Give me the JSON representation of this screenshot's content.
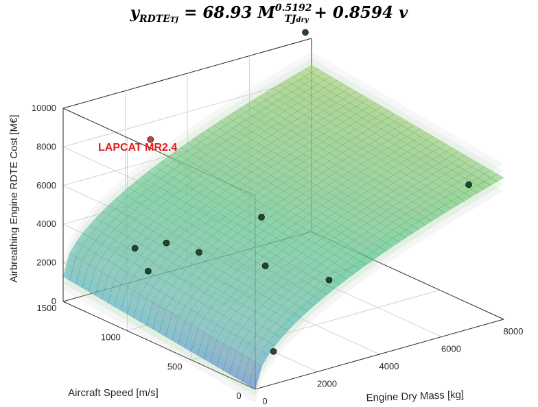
{
  "title": {
    "y": "y",
    "y_sub": "RDTE",
    "y_subsub": "TJ",
    "equals": " = ",
    "coef1": "68.93",
    "var": "M",
    "var_sub": "TJ",
    "var_subsub": "dry",
    "exponent": "0.5192",
    "plus": " + ",
    "coef2": "0.8594",
    "var2": "v"
  },
  "chart_data": {
    "type": "surface3d",
    "equation": "y = 68.93 * M^0.5192 + 0.8594 * v",
    "coef_mass": 68.93,
    "exponent_mass": 0.5192,
    "coef_speed": 0.8594,
    "xlabel": "Engine Dry Mass [kg]",
    "ylabel": "Aircraft Speed [m/s]",
    "zlabel": "Airbreathing Engine RDTE Cost [M€]",
    "xlim": [
      0,
      8000
    ],
    "ylim": [
      0,
      1500
    ],
    "zlim": [
      0,
      10000
    ],
    "xticks": [
      "0",
      "2000",
      "4000",
      "6000",
      "8000"
    ],
    "yticks": [
      "0",
      "500",
      "1000",
      "1500"
    ],
    "zticks": [
      "0",
      "2000",
      "4000",
      "6000",
      "8000",
      "10000"
    ],
    "confidence_bands": [
      "inner (green)",
      "outer (grey)"
    ],
    "grid": true,
    "annotation": "LAPCAT MR2.4",
    "points": [
      {
        "mass": 7800,
        "speed": 1500,
        "cost": 10400
      },
      {
        "mass": 7700,
        "speed": 200,
        "cost": 6500
      },
      {
        "mass": 3200,
        "speed": 200,
        "cost": 3600
      },
      {
        "mass": 3500,
        "speed": 800,
        "cost": 4900
      },
      {
        "mass": 2800,
        "speed": 600,
        "cost": 3300
      },
      {
        "mass": 1900,
        "speed": 900,
        "cost": 3500
      },
      {
        "mass": 2500,
        "speed": 1300,
        "cost": 2500
      },
      {
        "mass": 1900,
        "speed": 1400,
        "cost": 2200
      },
      {
        "mass": 1500,
        "speed": 1200,
        "cost": 1800
      },
      {
        "mass": 1000,
        "speed": 100,
        "cost": 1200
      },
      {
        "mass": 2400,
        "speed": 1400,
        "cost": 7600,
        "highlight": true
      }
    ]
  }
}
